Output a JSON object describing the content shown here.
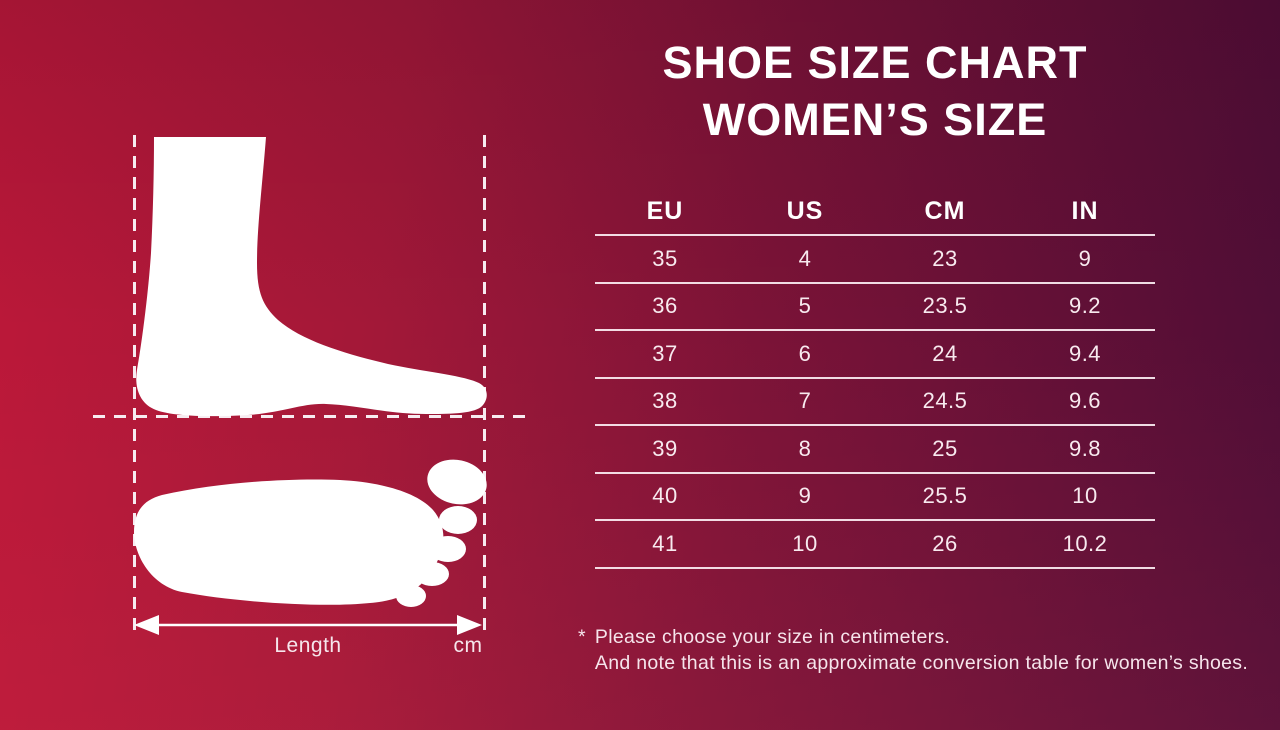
{
  "title": {
    "line1": "SHOE SIZE CHART",
    "line2": "WOMEN’S SIZE"
  },
  "chart_data": {
    "type": "table",
    "title": "SHOE SIZE CHART WOMEN’S SIZE",
    "columns": [
      "EU",
      "US",
      "CM",
      "IN"
    ],
    "rows": [
      [
        35,
        4,
        23,
        9
      ],
      [
        36,
        5,
        23.5,
        9.2
      ],
      [
        37,
        6,
        24,
        9.4
      ],
      [
        38,
        7,
        24.5,
        9.6
      ],
      [
        39,
        8,
        25,
        9.8
      ],
      [
        40,
        9,
        25.5,
        10
      ],
      [
        41,
        10,
        26,
        10.2
      ]
    ]
  },
  "diagram": {
    "length_label": "Length",
    "unit_label": "cm",
    "icons": [
      "foot-side-silhouette",
      "footprint-top-silhouette",
      "length-arrow"
    ]
  },
  "footnote": {
    "marker": "*",
    "line1": "Please choose your size in centimeters.",
    "line2": "And note that this is an approximate conversion table for women’s shoes."
  },
  "colors": {
    "background_bright": "#bd1839",
    "background_dark": "#4c0d36",
    "title_text": "#ffffff",
    "table_text": "#f8eaef",
    "divider_line": "#fceef3",
    "dashed_guide": "#f7ebf0",
    "silhouette": "#ffffff"
  }
}
